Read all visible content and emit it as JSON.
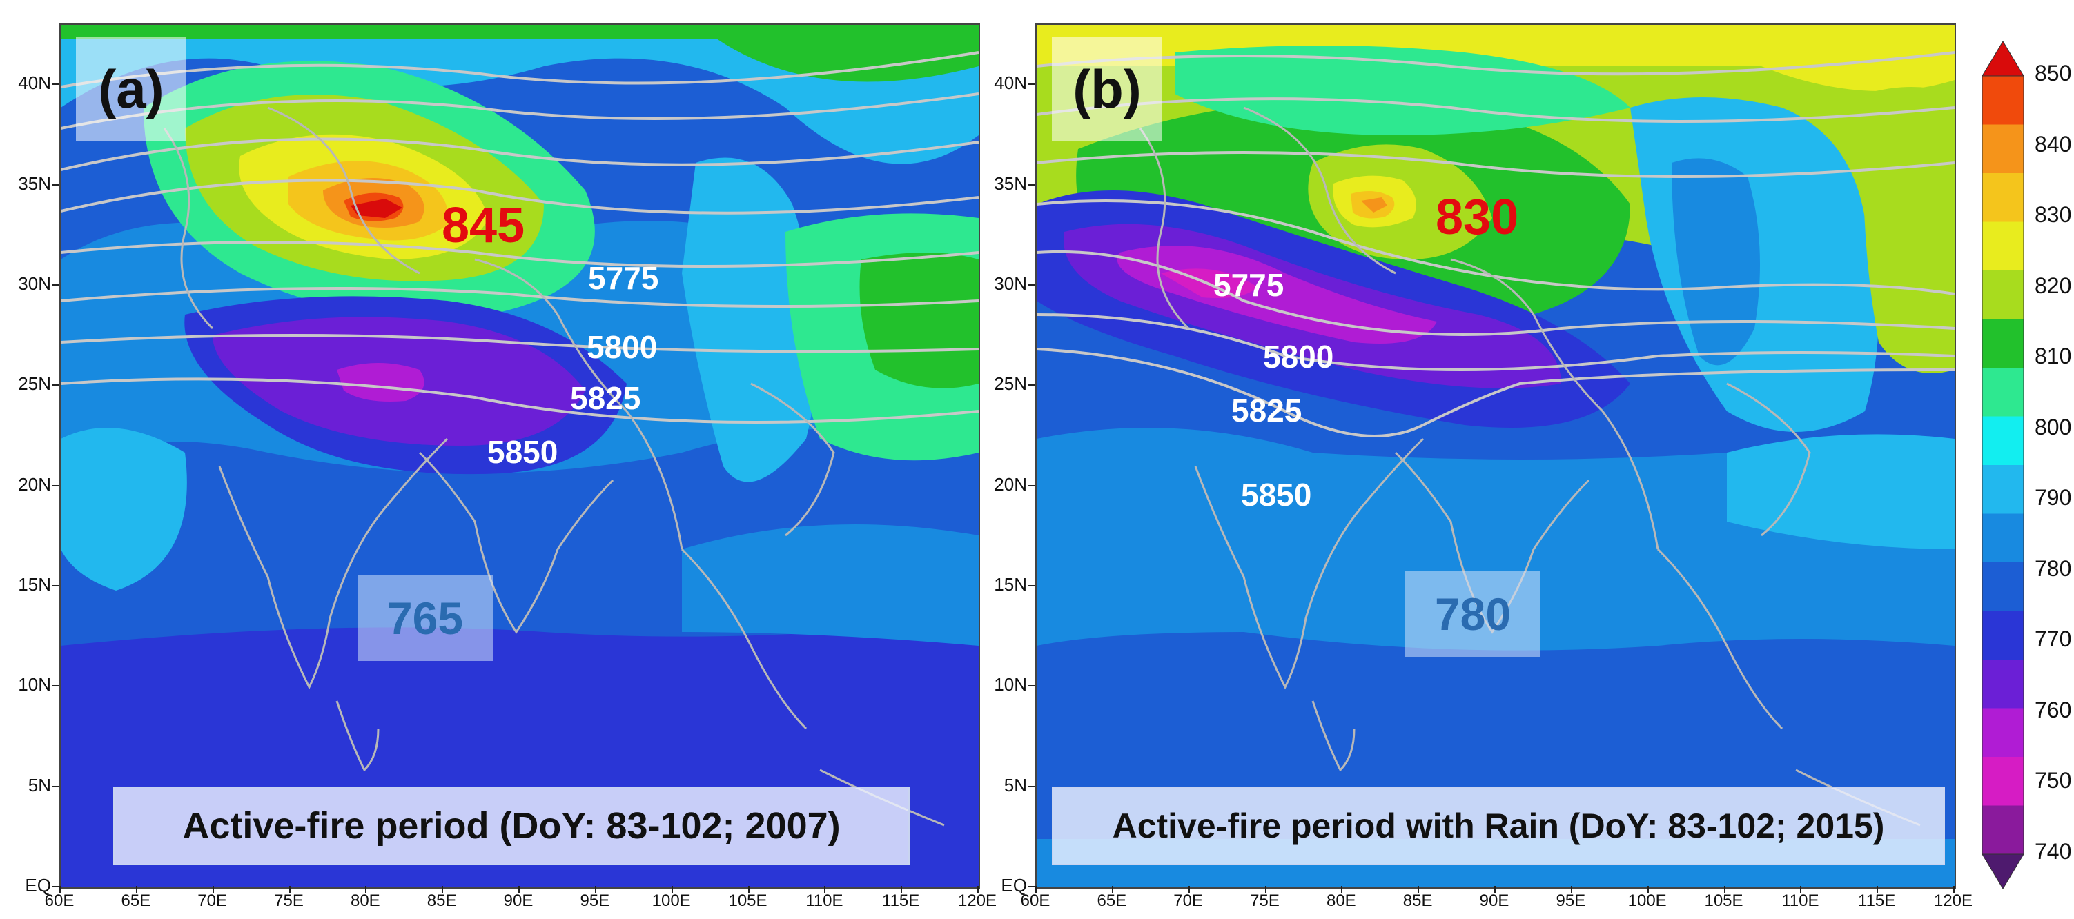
{
  "panels": [
    {
      "id": "a",
      "label": "(a)",
      "caption": "Active-fire period (DoY: 83-102; 2007)",
      "max_value": "845",
      "min_value": "765",
      "contour_labels": [
        "5775",
        "5800",
        "5825",
        "5850"
      ]
    },
    {
      "id": "b",
      "label": "(b)",
      "caption": "Active-fire period with Rain (DoY: 83-102; 2015)",
      "max_value": "830",
      "min_value": "780",
      "contour_labels": [
        "5775",
        "5800",
        "5825",
        "5850"
      ]
    }
  ],
  "axes": {
    "lat_ticks": [
      "40N",
      "35N",
      "30N",
      "25N",
      "20N",
      "15N",
      "10N",
      "5N",
      "EQ"
    ],
    "lon_ticks": [
      "60E",
      "65E",
      "70E",
      "75E",
      "80E",
      "85E",
      "90E",
      "95E",
      "100E",
      "105E",
      "110E",
      "115E",
      "120E"
    ],
    "lat_range": [
      0,
      43
    ],
    "lon_range": [
      60,
      120
    ]
  },
  "colorbar": {
    "labels": [
      "850",
      "840",
      "830",
      "820",
      "810",
      "800",
      "790",
      "780",
      "770",
      "760",
      "750",
      "740"
    ],
    "colors": [
      "#d90b0b",
      "#f04a0c",
      "#f5941a",
      "#f4c51c",
      "#e8ec1e",
      "#a8dc1e",
      "#22c12c",
      "#2ee890",
      "#12eef0",
      "#22b8ee",
      "#188ae0",
      "#1c5ed4",
      "#2a36d6",
      "#6b1fd6",
      "#b01cd4",
      "#d61cc4",
      "#8a1a9c",
      "#4e1a6e"
    ]
  }
}
